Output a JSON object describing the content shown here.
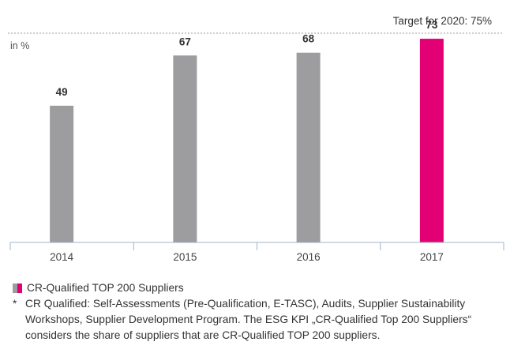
{
  "target_label": "Target for 2020: 75%",
  "legend": {
    "label": "CR-Qualified TOP 200 Suppliers",
    "colors": {
      "past": "#9d9d9f",
      "current": "#e20074"
    }
  },
  "footnote": {
    "marker": "*",
    "text": "CR Qualified: Self-Assessments (Pre-Qualification, E-TASC), Audits, Supplier Sustainability Workshops, Supplier Development Program. The ESG KPI „CR-Qualified Top 200 Suppliers“ considers the share of suppliers that are CR-Qualified TOP 200 suppliers."
  },
  "chart_data": {
    "type": "bar",
    "unit_label": "in %",
    "categories": [
      "2014",
      "2015",
      "2016",
      "2017"
    ],
    "values": [
      49,
      67,
      68,
      73
    ],
    "ylim": [
      0,
      100
    ],
    "target": 75,
    "highlight_index": 3,
    "colors": {
      "default": "#9d9d9f",
      "highlight": "#e20074",
      "target_line": "#9d9d9f"
    },
    "grid": false
  }
}
